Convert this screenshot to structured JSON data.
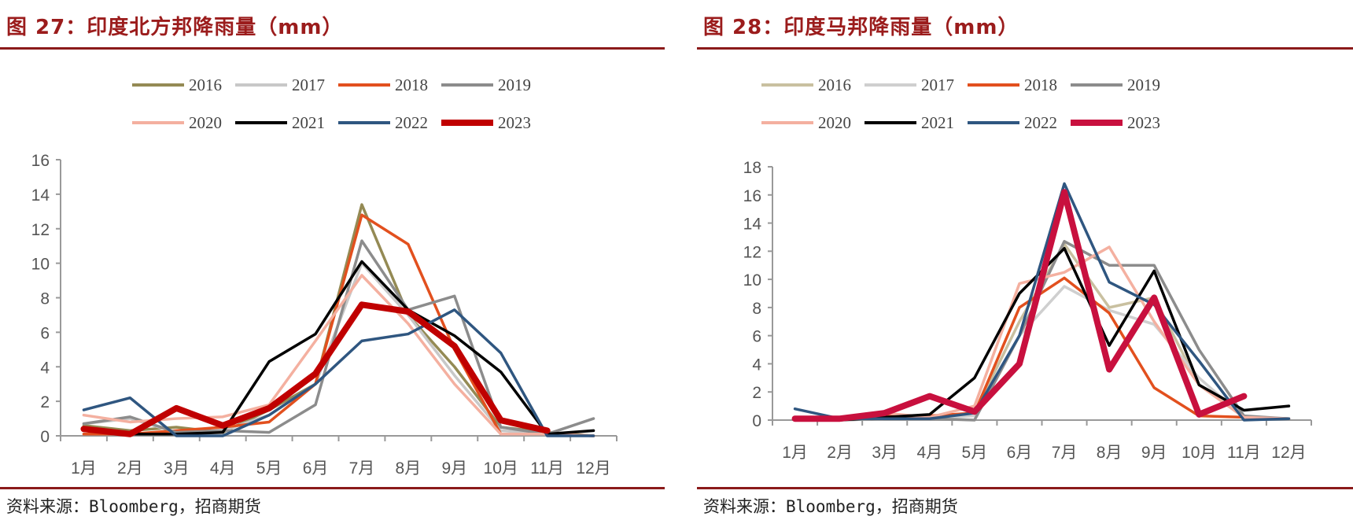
{
  "charts": [
    {
      "figure_title": "图 27：印度北方邦降雨量（mm）",
      "source": "资料来源：Bloomberg，招商期货"
    },
    {
      "figure_title": "图 28：印度马邦降雨量（mm）",
      "source": "资料来源：Bloomberg，招商期货"
    }
  ],
  "chart_data": [
    {
      "type": "line",
      "title": "图 27：印度北方邦降雨量（mm）",
      "xlabel": "",
      "ylabel": "",
      "categories": [
        "1月",
        "2月",
        "3月",
        "4月",
        "5月",
        "6月",
        "7月",
        "8月",
        "9月",
        "10月",
        "11月",
        "12月"
      ],
      "ylim": [
        0,
        16
      ],
      "yticks": [
        0,
        2,
        4,
        6,
        8,
        10,
        12,
        14,
        16
      ],
      "grid": false,
      "legend": "top",
      "series": [
        {
          "name": "2016",
          "color": "#948a54",
          "values": [
            0.6,
            0.3,
            0.5,
            0.2,
            1.5,
            3.0,
            13.4,
            7.0,
            4.0,
            0.5,
            0.2,
            0
          ]
        },
        {
          "name": "2017",
          "color": "#c8c8c8",
          "values": [
            0.7,
            1.0,
            0.2,
            0.3,
            1.2,
            3.0,
            10.0,
            7.0,
            3.5,
            0.3,
            0.1,
            0
          ]
        },
        {
          "name": "2018",
          "color": "#e2501e",
          "values": [
            0.1,
            0.1,
            0.3,
            0.5,
            0.8,
            3.0,
            12.8,
            11.1,
            5.0,
            0.1,
            0.1,
            0
          ]
        },
        {
          "name": "2019",
          "color": "#8c8c8c",
          "values": [
            0.7,
            1.1,
            0.2,
            0.3,
            0.2,
            1.8,
            11.3,
            7.3,
            8.1,
            0.5,
            0.1,
            1.0
          ]
        },
        {
          "name": "2020",
          "color": "#f4b0a0",
          "values": [
            1.2,
            0.8,
            1.0,
            1.1,
            1.8,
            5.5,
            9.3,
            6.5,
            3.0,
            0.1,
            0.1,
            0
          ]
        },
        {
          "name": "2021",
          "color": "#000000",
          "values": [
            0.3,
            0.1,
            0.1,
            0.2,
            4.3,
            5.9,
            10.1,
            7.3,
            5.8,
            3.7,
            0.1,
            0.3
          ]
        },
        {
          "name": "2022",
          "color": "#2f5680",
          "values": [
            1.5,
            2.2,
            0,
            0,
            1.2,
            3.0,
            5.5,
            5.9,
            7.3,
            4.8,
            0,
            0
          ]
        },
        {
          "name": "2023",
          "color": "#c00000",
          "values": [
            0.4,
            0.1,
            1.6,
            0.6,
            1.6,
            3.6,
            7.6,
            7.2,
            5.2,
            0.9,
            0.3,
            null
          ]
        }
      ]
    },
    {
      "type": "line",
      "title": "图 28：印度马邦降雨量（mm）",
      "xlabel": "",
      "ylabel": "",
      "categories": [
        "1月",
        "2月",
        "3月",
        "4月",
        "5月",
        "6月",
        "7月",
        "8月",
        "9月",
        "10月",
        "11月",
        "12月"
      ],
      "ylim": [
        0,
        18
      ],
      "yticks": [
        0,
        2,
        4,
        6,
        8,
        10,
        12,
        14,
        16,
        18
      ],
      "grid": false,
      "legend": "top",
      "series": [
        {
          "name": "2016",
          "color": "#c9c0a0",
          "values": [
            0,
            0,
            0.2,
            0.2,
            0.5,
            7.0,
            12.5,
            8.0,
            8.7,
            2.5,
            0.2,
            0.1
          ]
        },
        {
          "name": "2017",
          "color": "#cfcfcf",
          "values": [
            0,
            0,
            0.1,
            0.1,
            0.3,
            6.0,
            9.5,
            7.8,
            6.8,
            3.0,
            0.2,
            0.1
          ]
        },
        {
          "name": "2018",
          "color": "#e2501e",
          "values": [
            0.1,
            0,
            0.3,
            0.3,
            0.5,
            8.0,
            10.1,
            7.6,
            2.3,
            0.3,
            0.2,
            0.1
          ]
        },
        {
          "name": "2019",
          "color": "#8c8c8c",
          "values": [
            0.1,
            0,
            0.1,
            0.1,
            0,
            6.0,
            12.7,
            11.0,
            11.0,
            5.0,
            0.3,
            0.1
          ]
        },
        {
          "name": "2020",
          "color": "#f4b0a0",
          "values": [
            0,
            0,
            0.5,
            0.2,
            1.0,
            9.7,
            10.5,
            12.3,
            7.0,
            2.5,
            0.2,
            0.1
          ]
        },
        {
          "name": "2021",
          "color": "#000000",
          "values": [
            0.1,
            0,
            0.2,
            0.4,
            3.0,
            9.0,
            12.2,
            5.3,
            10.6,
            2.5,
            0.7,
            1.0
          ]
        },
        {
          "name": "2022",
          "color": "#2f5680",
          "values": [
            0.8,
            0.1,
            0.1,
            0.1,
            0.5,
            6.0,
            16.8,
            9.8,
            8.2,
            4.2,
            0,
            0.1
          ]
        },
        {
          "name": "2023",
          "color": "#c8103e",
          "values": [
            0.1,
            0.1,
            0.5,
            1.7,
            0.6,
            4.0,
            16.2,
            3.6,
            8.7,
            0.4,
            1.7,
            null
          ]
        }
      ]
    }
  ]
}
